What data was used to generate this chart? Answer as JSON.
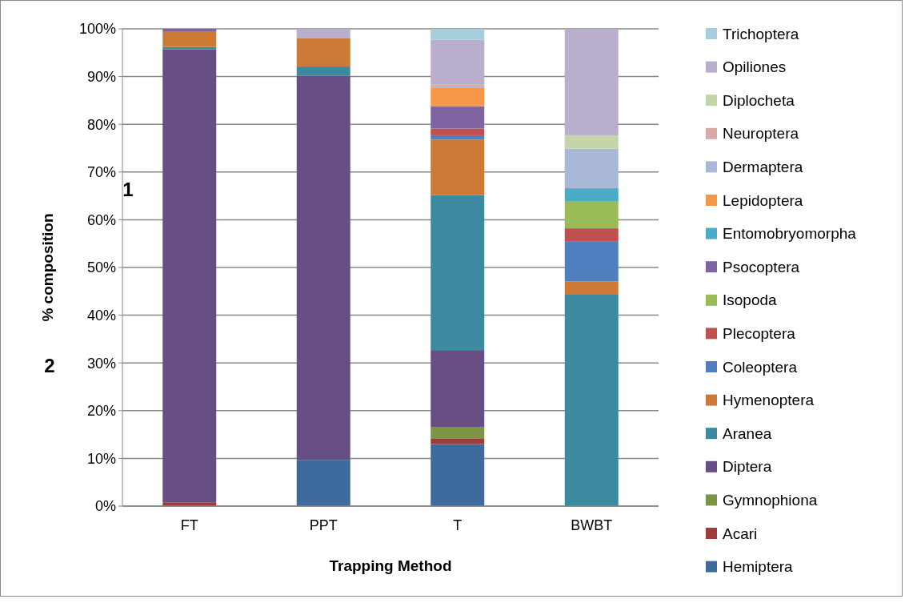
{
  "chart_data": {
    "type": "bar",
    "stacked": true,
    "xlabel": "Trapping Method",
    "ylabel": "% composition",
    "categories": [
      "FT",
      "PPT",
      "T",
      "BWBT"
    ],
    "ylim": [
      0,
      100
    ],
    "yticks": [
      {
        "value": 0,
        "label": "0%"
      },
      {
        "value": 10,
        "label": "10%"
      },
      {
        "value": 20,
        "label": "20%"
      },
      {
        "value": 30,
        "label": "30%"
      },
      {
        "value": 40,
        "label": "40%"
      },
      {
        "value": 50,
        "label": "50%"
      },
      {
        "value": 60,
        "label": "60%"
      },
      {
        "value": 70,
        "label": "70%"
      },
      {
        "value": 80,
        "label": "80%"
      },
      {
        "value": 90,
        "label": "90%"
      },
      {
        "value": 100,
        "label": "100%"
      }
    ],
    "grid": "y",
    "legend": "right",
    "annotations": [
      "1",
      "2"
    ],
    "series": [
      {
        "name": "Hemiptera",
        "color": "#3f6a9e",
        "values": [
          null,
          9.7,
          13.0,
          null
        ]
      },
      {
        "name": "Acari",
        "color": "#9e3b3b",
        "values": [
          0.8,
          null,
          1.1,
          null
        ]
      },
      {
        "name": "Gymnophiona",
        "color": "#7a9645",
        "values": [
          null,
          null,
          2.4,
          null
        ]
      },
      {
        "name": "Diptera",
        "color": "#674f86",
        "values": [
          94.9,
          80.5,
          16.2,
          null
        ]
      },
      {
        "name": "Aranea",
        "color": "#3b8aa0",
        "values": [
          0.5,
          1.9,
          32.5,
          44.3
        ]
      },
      {
        "name": "Hymenoptera",
        "color": "#cc7a36",
        "values": [
          3.3,
          5.9,
          11.6,
          2.8
        ]
      },
      {
        "name": "Coleoptera",
        "color": "#4f7fbf",
        "values": [
          null,
          null,
          0.9,
          8.3
        ]
      },
      {
        "name": "Plecoptera",
        "color": "#c0504d",
        "values": [
          null,
          null,
          1.4,
          2.8
        ]
      },
      {
        "name": "Isopoda",
        "color": "#9bbb59",
        "values": [
          null,
          null,
          null,
          5.6
        ]
      },
      {
        "name": "Psocoptera",
        "color": "#8064a2",
        "values": [
          0.5,
          null,
          4.7,
          null
        ]
      },
      {
        "name": "Entomobryomorpha",
        "color": "#4bacc6",
        "values": [
          null,
          null,
          null,
          2.8
        ]
      },
      {
        "name": "Lepidoptera",
        "color": "#f79646",
        "values": [
          null,
          null,
          3.8,
          null
        ]
      },
      {
        "name": "Dermaptera",
        "color": "#aab8d8",
        "values": [
          null,
          null,
          0.5,
          8.3
        ]
      },
      {
        "name": "Neuroptera",
        "color": "#dba9a8",
        "values": [
          null,
          null,
          0.3,
          null
        ]
      },
      {
        "name": "Diplocheta",
        "color": "#c4d6a8",
        "values": [
          null,
          null,
          null,
          2.8
        ]
      },
      {
        "name": "Opiliones",
        "color": "#b9afcc",
        "values": [
          null,
          2.0,
          9.3,
          22.3
        ]
      },
      {
        "name": "Trichoptera",
        "color": "#a6cedb",
        "values": [
          null,
          null,
          2.3,
          null
        ]
      }
    ]
  }
}
